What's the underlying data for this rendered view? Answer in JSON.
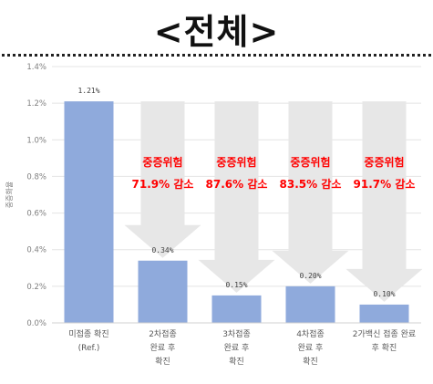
{
  "page": {
    "title": "<전체>"
  },
  "colors": {
    "bar": "#8faadc",
    "arrow": "#e7e7e7",
    "annotation": "#ff0000",
    "grid": "#e4e4e4",
    "axis_text": "#7f7f7f",
    "title": "#111111"
  },
  "chart_data": {
    "type": "bar",
    "ylabel": "중증화율",
    "ylim": [
      0,
      1.4
    ],
    "yticks": [
      0,
      0.2,
      0.4,
      0.6,
      0.8,
      1.0,
      1.2,
      1.4
    ],
    "ytick_labels": [
      "0.0%",
      "0.2%",
      "0.4%",
      "0.6%",
      "0.8%",
      "1.0%",
      "1.2%",
      "1.4%"
    ],
    "categories": [
      [
        "미접종 확진",
        "(Ref.)"
      ],
      [
        "2차접종",
        "완료 후",
        "확진"
      ],
      [
        "3차접종",
        "완료 후",
        "확진"
      ],
      [
        "4차접종",
        "완료 후",
        "확진"
      ],
      [
        "2가백신 접종 완료",
        "후 확진"
      ]
    ],
    "values": [
      1.21,
      0.34,
      0.15,
      0.2,
      0.1
    ],
    "data_labels": [
      "1.21%",
      "0.34%",
      "0.15%",
      "0.20%",
      "0.10%"
    ],
    "annotations": [
      null,
      {
        "line1": "중증위험",
        "line2": "71.9% 감소"
      },
      {
        "line1": "중증위험",
        "line2": "87.6% 감소"
      },
      {
        "line1": "중증위험",
        "line2": "83.5% 감소"
      },
      {
        "line1": "중증위험",
        "line2": "91.7% 감소"
      }
    ],
    "grid": true,
    "legend": "none"
  }
}
